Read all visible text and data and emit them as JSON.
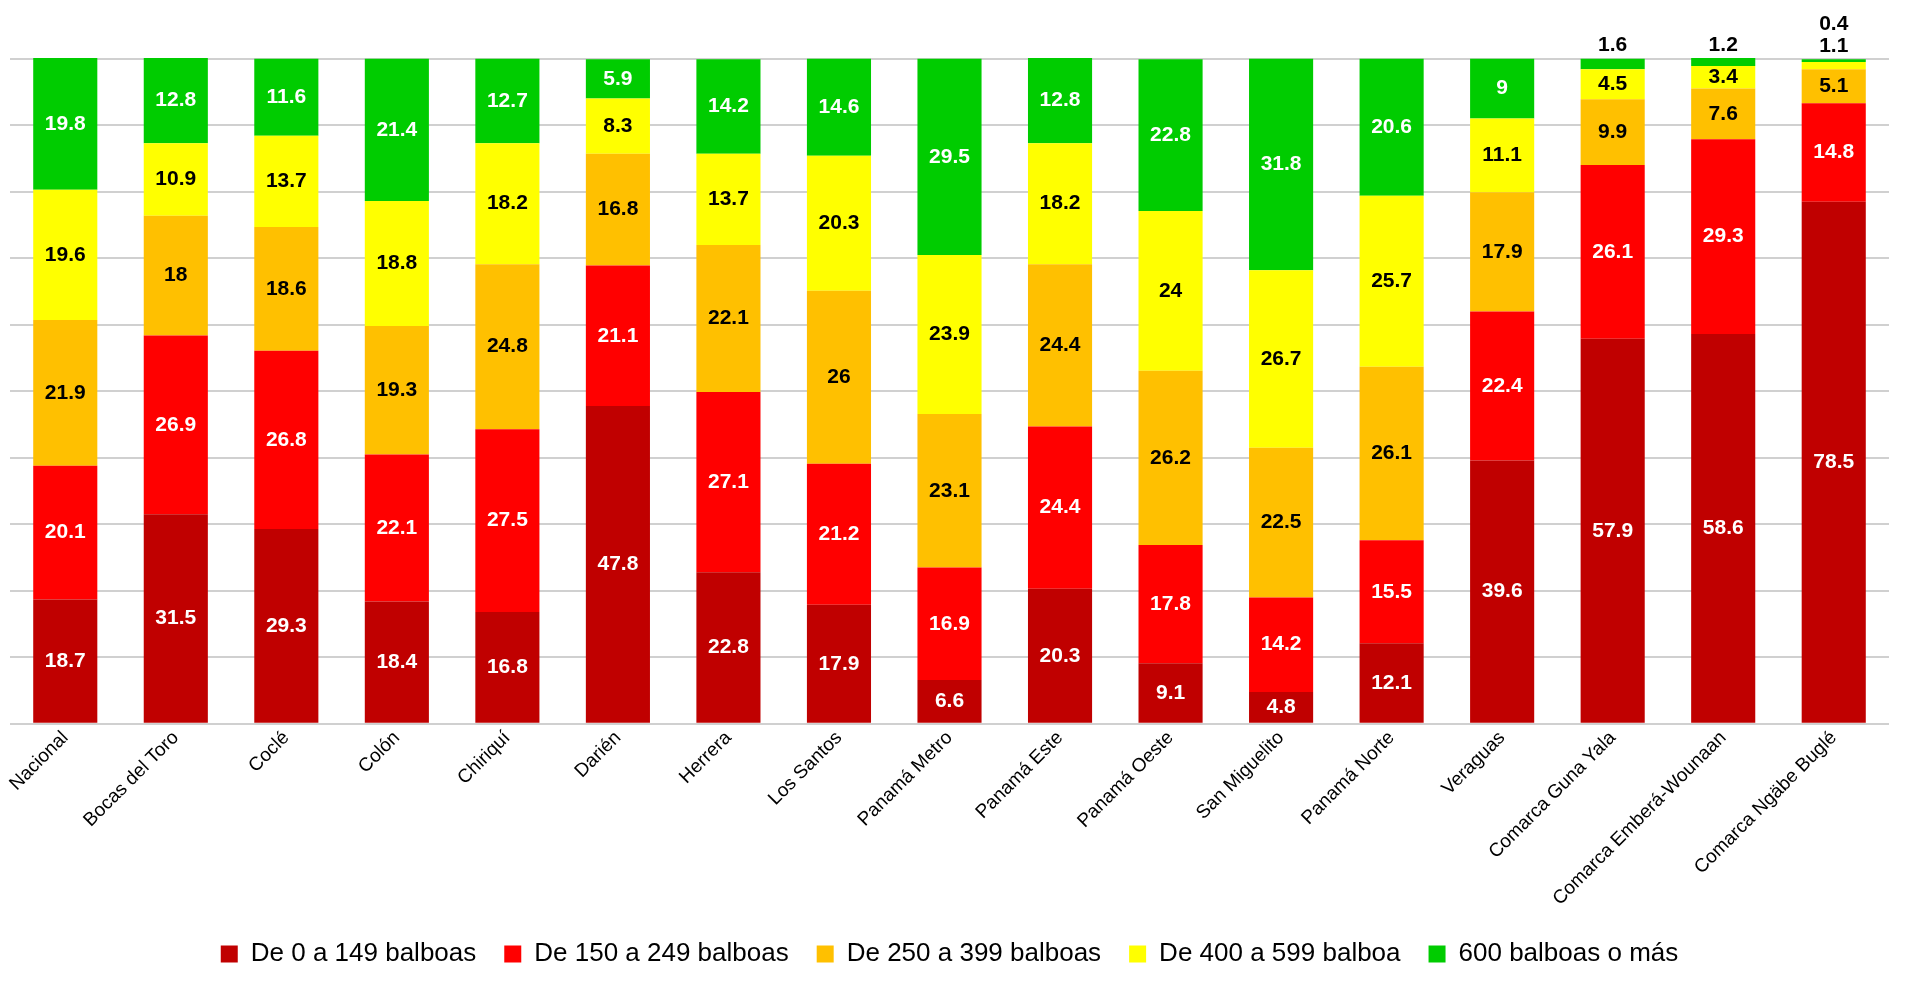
{
  "chart_data": {
    "type": "bar",
    "stacked": true,
    "data_labels": true,
    "grid": "y",
    "legend": "bottom",
    "tick_labels": "x",
    "ylim": [
      0,
      100.1
    ],
    "yticks": [
      {
        "value": 0,
        "label": null
      },
      {
        "value": 10,
        "label": null
      },
      {
        "value": 20,
        "label": null
      },
      {
        "value": 30,
        "label": null
      },
      {
        "value": 40,
        "label": null
      },
      {
        "value": 50,
        "label": null
      },
      {
        "value": 60,
        "label": null
      },
      {
        "value": 70,
        "label": null
      },
      {
        "value": 80,
        "label": null
      },
      {
        "value": 90,
        "label": null
      },
      {
        "value": 100,
        "label": null
      }
    ],
    "categories": [
      "Nacional",
      "Bocas del Toro",
      "Coclé",
      "Colón",
      "Chiriquí",
      "Darién",
      "Herrera",
      "Los Santos",
      "Panamá Metro",
      "Panamá Este",
      "Panamá Oeste",
      "San Miguelito",
      "Panamá Norte",
      "Veraguas",
      "Comarca Guna Yala",
      "Comarca Emberá-Wounaan",
      "Comarca Ngäbe Buglé"
    ],
    "series": [
      {
        "name": "De 0 a 149 balboas",
        "color": "#c00000",
        "values": [
          18.7,
          31.5,
          29.3,
          18.4,
          16.8,
          47.8,
          22.8,
          17.9,
          6.6,
          20.3,
          9.1,
          4.8,
          12.1,
          39.6,
          57.9,
          58.6,
          78.5
        ]
      },
      {
        "name": "De 150 a 249 balboas",
        "color": "#ff0000",
        "values": [
          20.1,
          26.9,
          26.8,
          22.1,
          27.5,
          21.1,
          27.1,
          21.2,
          16.9,
          24.4,
          17.8,
          14.2,
          15.5,
          22.4,
          26.1,
          29.3,
          14.8
        ]
      },
      {
        "name": "De 250 a 399 balboas",
        "color": "#ffc000",
        "values": [
          21.9,
          18,
          18.6,
          19.3,
          24.8,
          16.8,
          22.1,
          26,
          23.1,
          24.4,
          26.2,
          22.5,
          26.1,
          17.9,
          9.9,
          7.6,
          5.1
        ]
      },
      {
        "name": "De 400 a 599 balboa",
        "color": "#ffff00",
        "values": [
          19.6,
          10.9,
          13.7,
          18.8,
          18.2,
          8.3,
          13.7,
          20.3,
          23.9,
          18.2,
          24,
          26.7,
          25.7,
          11.1,
          4.5,
          3.4,
          1.1
        ]
      },
      {
        "name": "600 balboas o más",
        "color": "#00cc00",
        "values": [
          19.8,
          12.8,
          11.6,
          21.4,
          12.7,
          5.9,
          14.2,
          14.6,
          29.5,
          12.8,
          22.8,
          31.8,
          20.6,
          9,
          1.6,
          1.2,
          0.4
        ]
      }
    ]
  }
}
